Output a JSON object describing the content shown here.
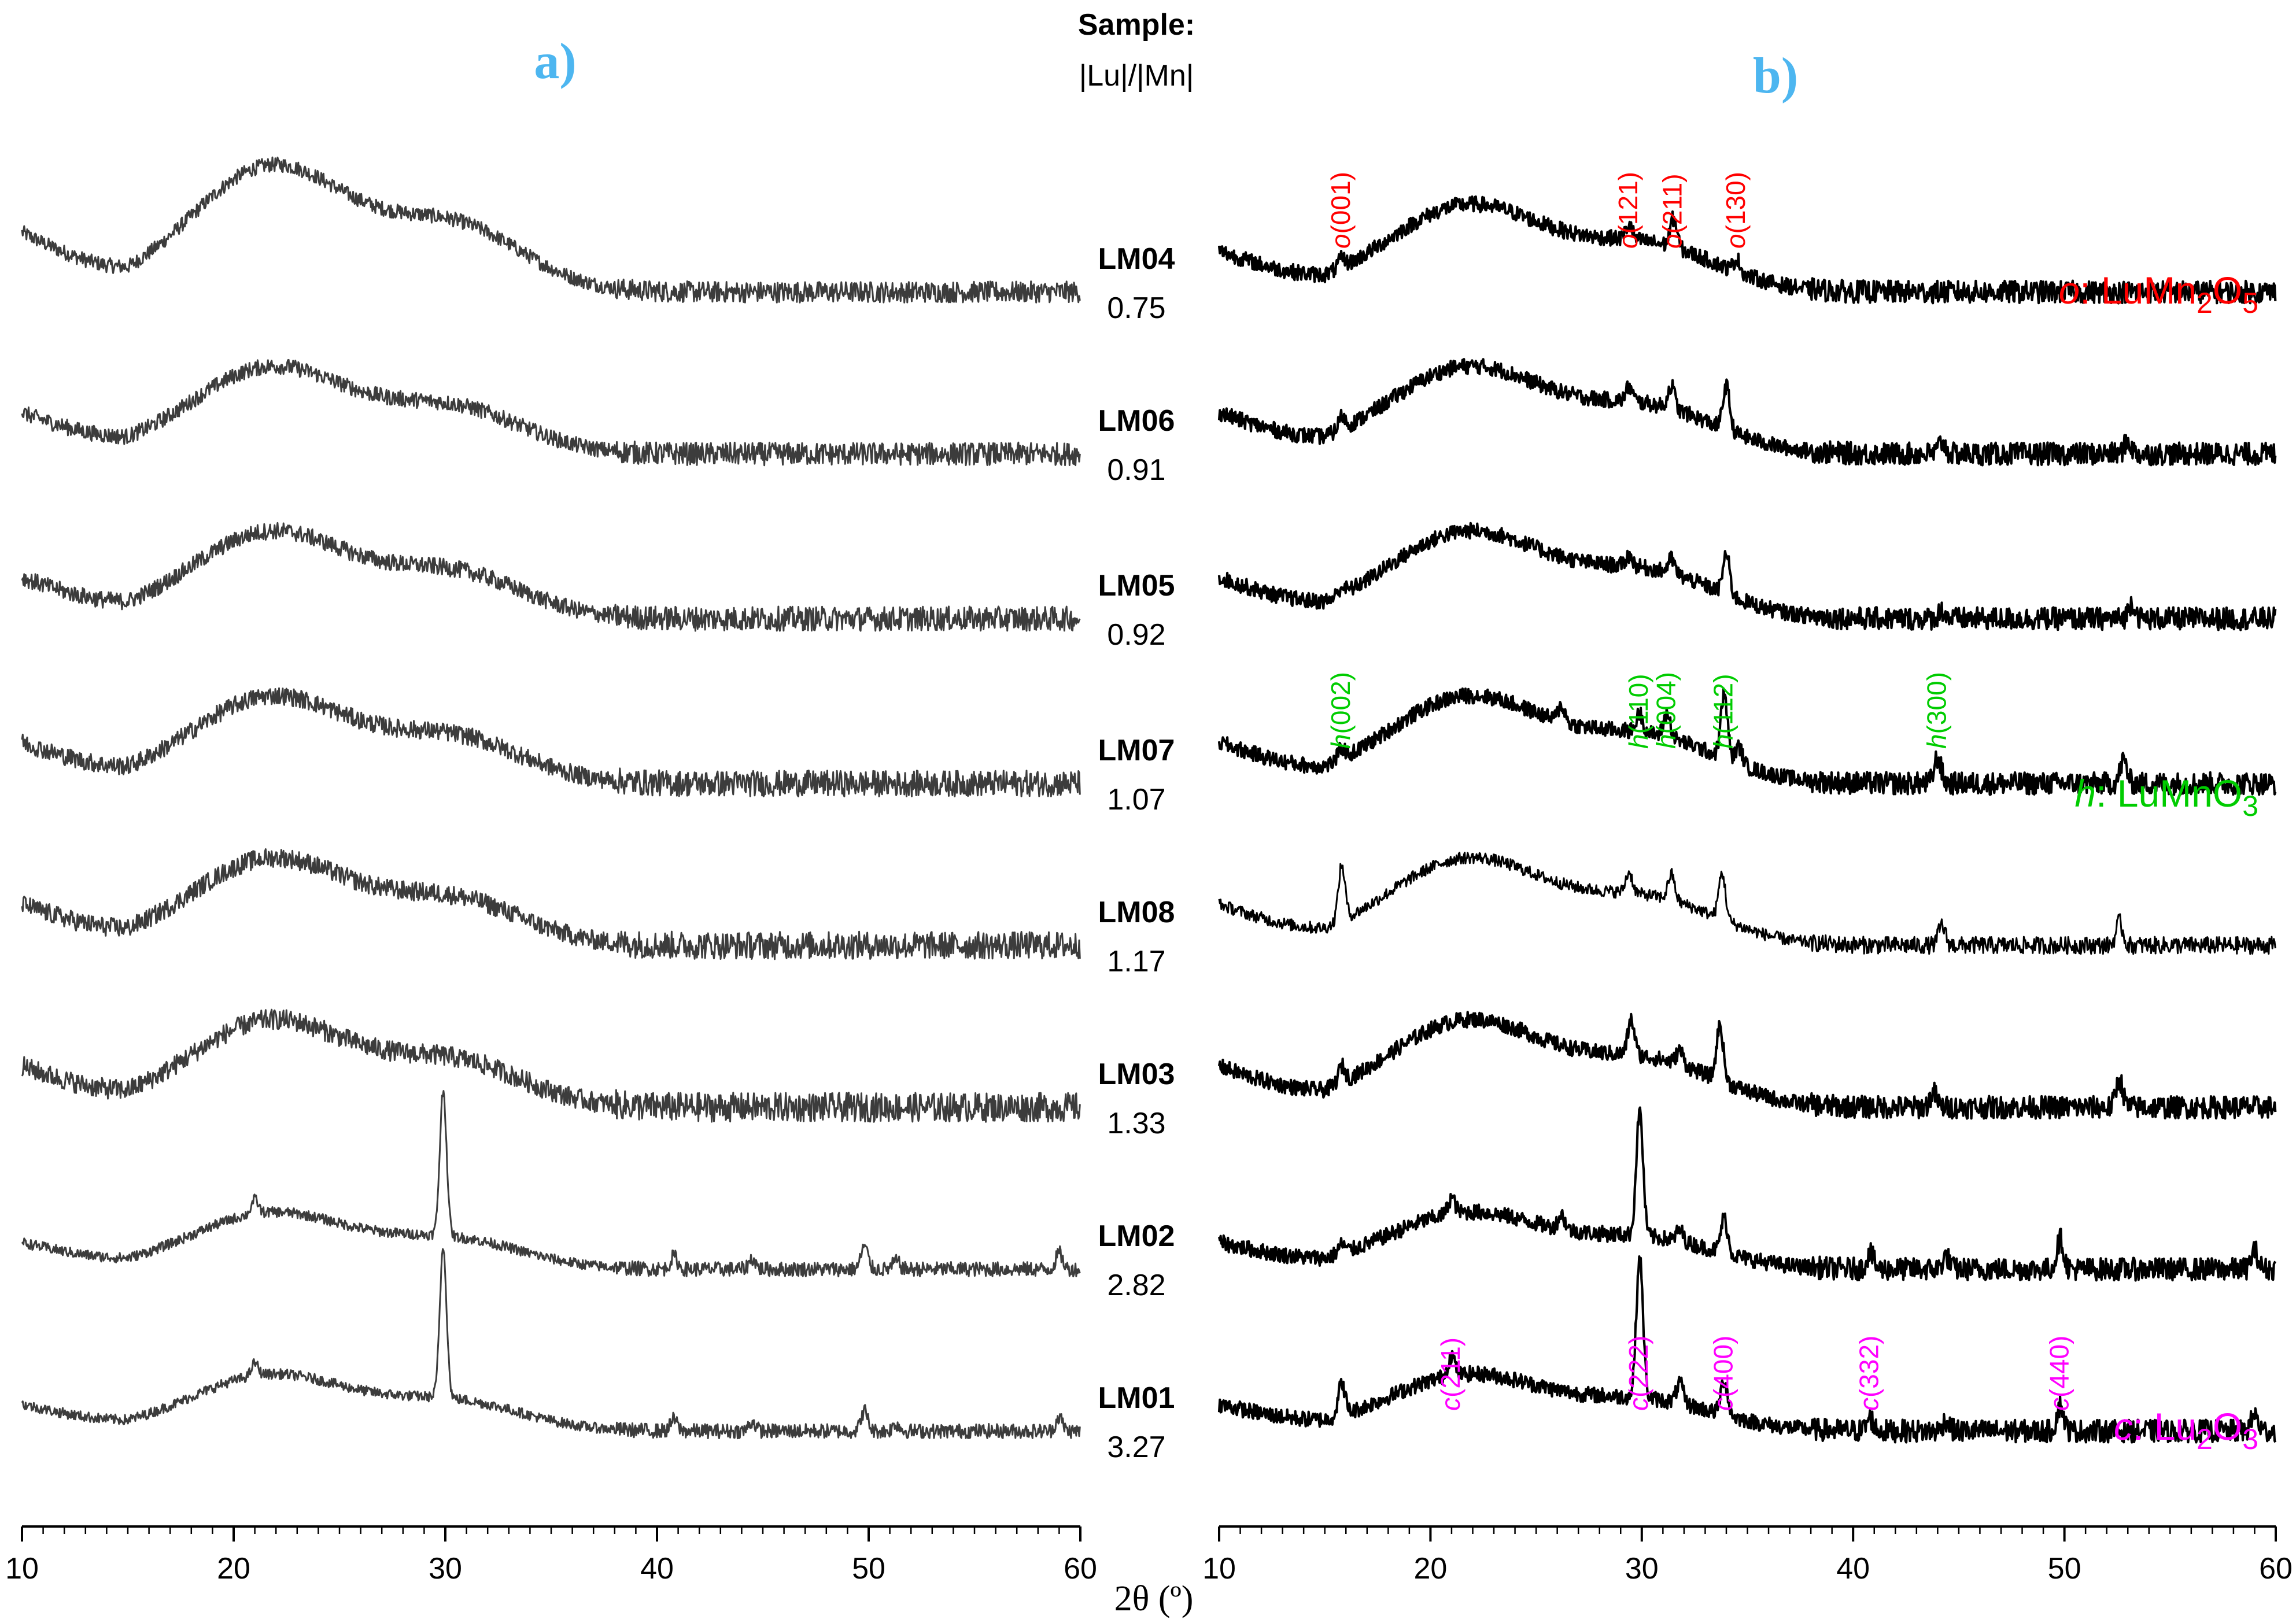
{
  "header": {
    "sample_label": "Sample:",
    "ratio_label": "|Lu|/|Mn|"
  },
  "chart_data": {
    "type": "line",
    "xlabel": "2θ (º)",
    "x_ticks": [
      "10",
      "20",
      "30",
      "40",
      "50",
      "60"
    ],
    "xlim": [
      10,
      60
    ],
    "samples": [
      {
        "name": "LM04",
        "ratio": "0.75"
      },
      {
        "name": "LM06",
        "ratio": "0.91"
      },
      {
        "name": "LM05",
        "ratio": "0.92"
      },
      {
        "name": "LM07",
        "ratio": "1.07"
      },
      {
        "name": "LM08",
        "ratio": "1.17"
      },
      {
        "name": "LM03",
        "ratio": "1.33"
      },
      {
        "name": "LM02",
        "ratio": "2.82"
      },
      {
        "name": "LM01",
        "ratio": "3.27"
      }
    ],
    "panels": [
      {
        "label": "a)",
        "line_color": "#3c3c3c",
        "series": [
          {
            "name": "LM04",
            "peaks": []
          },
          {
            "name": "LM06",
            "peaks": []
          },
          {
            "name": "LM05",
            "peaks": []
          },
          {
            "name": "LM07",
            "peaks": []
          },
          {
            "name": "LM08",
            "peaks": []
          },
          {
            "name": "LM03",
            "peaks": []
          },
          {
            "name": "LM02",
            "peaks": [
              [
                21.0,
                25
              ],
              [
                29.9,
                250
              ],
              [
                40.8,
                22
              ],
              [
                44.5,
                18
              ],
              [
                49.8,
                40
              ],
              [
                51.3,
                14
              ],
              [
                59.0,
                28
              ]
            ]
          },
          {
            "name": "LM01",
            "peaks": [
              [
                21.0,
                22
              ],
              [
                29.9,
                260
              ],
              [
                40.8,
                20
              ],
              [
                44.5,
                16
              ],
              [
                49.8,
                35
              ],
              [
                51.3,
                12
              ],
              [
                59.0,
                24
              ]
            ]
          }
        ]
      },
      {
        "label": "b)",
        "line_color": "#000000",
        "series": [
          {
            "name": "LM04",
            "peaks": [
              [
                15.8,
                15
              ],
              [
                29.4,
                25
              ],
              [
                31.5,
                50
              ],
              [
                34.5,
                22
              ]
            ]
          },
          {
            "name": "LM06",
            "peaks": [
              [
                15.8,
                22
              ],
              [
                29.4,
                25
              ],
              [
                31.4,
                40
              ],
              [
                34.0,
                75
              ],
              [
                44.2,
                20
              ],
              [
                53.0,
                22
              ]
            ]
          },
          {
            "name": "LM05",
            "peaks": [
              [
                15.8,
                12
              ],
              [
                29.4,
                18
              ],
              [
                31.4,
                25
              ],
              [
                34.0,
                70
              ],
              [
                44.2,
                14
              ],
              [
                53.2,
                28
              ]
            ]
          },
          {
            "name": "LM07",
            "peaks": [
              [
                15.8,
                18
              ],
              [
                26.2,
                28
              ],
              [
                29.9,
                32
              ],
              [
                31.2,
                40
              ],
              [
                33.9,
                110
              ],
              [
                34.6,
                30
              ],
              [
                44.0,
                45
              ],
              [
                52.8,
                40
              ]
            ]
          },
          {
            "name": "LM08",
            "peaks": [
              [
                15.8,
                95
              ],
              [
                29.4,
                35
              ],
              [
                31.4,
                45
              ],
              [
                33.8,
                80
              ],
              [
                44.2,
                35
              ],
              [
                52.6,
                40
              ]
            ]
          },
          {
            "name": "LM03",
            "peaks": [
              [
                15.8,
                28
              ],
              [
                29.5,
                60
              ],
              [
                31.8,
                25
              ],
              [
                33.7,
                95
              ],
              [
                43.8,
                25
              ],
              [
                52.6,
                48
              ]
            ]
          },
          {
            "name": "LM02",
            "peaks": [
              [
                15.8,
                15
              ],
              [
                21.0,
                28
              ],
              [
                26.2,
                25
              ],
              [
                29.9,
                215
              ],
              [
                31.8,
                20
              ],
              [
                33.9,
                60
              ],
              [
                40.8,
                28
              ],
              [
                44.4,
                22
              ],
              [
                49.8,
                52
              ],
              [
                59.0,
                32
              ]
            ]
          },
          {
            "name": "LM01",
            "peaks": [
              [
                15.8,
                55
              ],
              [
                21.0,
                35
              ],
              [
                29.9,
                240
              ],
              [
                31.8,
                35
              ],
              [
                33.9,
                60
              ],
              [
                40.8,
                22
              ],
              [
                44.4,
                18
              ],
              [
                49.8,
                44
              ],
              [
                59.0,
                28
              ]
            ]
          }
        ]
      }
    ],
    "annotations": [
      {
        "phase": "o",
        "hkl": "(001)",
        "x": 15.8,
        "color": "#ff0000"
      },
      {
        "phase": "o",
        "hkl": "(121)",
        "x": 29.4,
        "color": "#ff0000"
      },
      {
        "phase": "o",
        "hkl": "(211)",
        "x": 31.5,
        "color": "#ff0000"
      },
      {
        "phase": "o",
        "hkl": "(130)",
        "x": 34.5,
        "color": "#ff0000"
      },
      {
        "phase": "h",
        "hkl": "(002)",
        "x": 15.8,
        "color": "#00cc00"
      },
      {
        "phase": "h",
        "hkl": "(110)",
        "x": 29.9,
        "color": "#00cc00"
      },
      {
        "phase": "h",
        "hkl": "(004)",
        "x": 31.2,
        "color": "#00cc00"
      },
      {
        "phase": "h",
        "hkl": "(112)",
        "x": 33.9,
        "color": "#00cc00"
      },
      {
        "phase": "h",
        "hkl": "(300)",
        "x": 44.0,
        "color": "#00cc00"
      },
      {
        "phase": "c",
        "hkl": "(211)",
        "x": 21.0,
        "color": "#ff00ff"
      },
      {
        "phase": "c",
        "hkl": "(222)",
        "x": 29.9,
        "color": "#ff00ff"
      },
      {
        "phase": "c",
        "hkl": "(400)",
        "x": 33.9,
        "color": "#ff00ff"
      },
      {
        "phase": "c",
        "hkl": "(332)",
        "x": 40.8,
        "color": "#ff00ff"
      },
      {
        "phase": "c",
        "hkl": "(440)",
        "x": 49.8,
        "color": "#ff00ff"
      }
    ],
    "legend": [
      {
        "symbol": "o",
        "sep": ": ",
        "formula": [
          [
            "LuMn",
            false
          ],
          [
            "2",
            true
          ],
          [
            "O",
            false
          ],
          [
            "5",
            true
          ]
        ],
        "color": "#ff0000"
      },
      {
        "symbol": "h",
        "sep": ": ",
        "formula": [
          [
            "LuMnO",
            false
          ],
          [
            "3",
            true
          ]
        ],
        "color": "#00cc00"
      },
      {
        "symbol": "c",
        "sep": ": ",
        "formula": [
          [
            "Lu",
            false
          ],
          [
            "2",
            true
          ],
          [
            "O",
            false
          ],
          [
            "3",
            true
          ]
        ],
        "color": "#ff00ff"
      }
    ]
  }
}
